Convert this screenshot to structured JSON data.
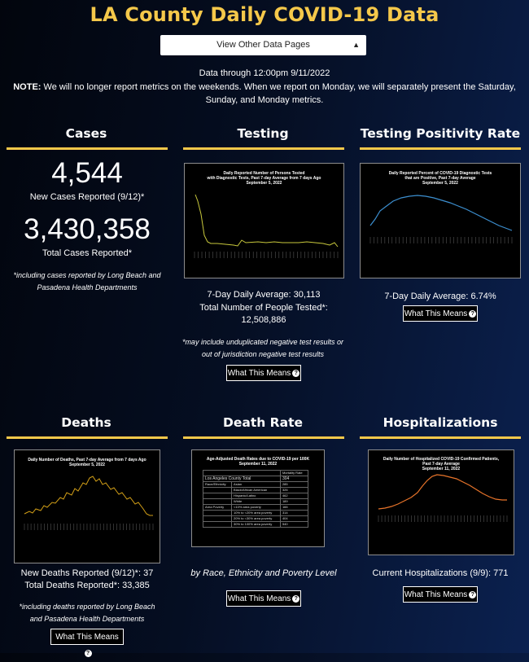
{
  "header": {
    "title": "LA County Daily COVID-19 Data",
    "select_label": "View Other Data Pages",
    "data_through": "Data through 12:00pm 9/11/2022",
    "note_label": "NOTE:",
    "note_text": " We will no longer report metrics on the weekends. When we report on Monday, we will separately present the Saturday, Sunday, and Monday metrics."
  },
  "cases": {
    "heading": "Cases",
    "new_value": "4,544",
    "new_label": "New Cases Reported (9/12)*",
    "total_value": "3,430,358",
    "total_label": "Total Cases Reported*",
    "footnote": "*including cases reported by Long Beach and Pasadena Health Departments"
  },
  "testing": {
    "heading": "Testing",
    "chart_title": "Daily Reported Number of Persons Tested\nwith Diagnostic Tests, Past 7-day Average from 7 days Ago\nSeptember 5, 2022",
    "avg": "7-Day Daily Average: 30,113",
    "total": "Total Number of People Tested*: 12,508,886",
    "footnote": "*may include unduplicated negative test results or out of jurisdiction negative test results",
    "button": "What This Means"
  },
  "positivity": {
    "heading": "Testing Positivity Rate",
    "chart_title": "Daily Reported Percent of COVID-19 Diagnostic Tests\nthat are Positive, Past 7-day Average\nSeptember 5, 2022",
    "avg": "7-Day Daily Average: 6.74%",
    "button": "What This Means"
  },
  "deaths": {
    "heading": "Deaths",
    "chart_title": "Daily Number of Deaths, Past 7-day Average from 7 days Ago\nSeptember 5, 2022",
    "new": "New Deaths Reported (9/12)*: 37",
    "total": "Total Deaths Reported*: 33,385",
    "footnote": "*including deaths reported by Long Beach and Pasadena Health Departments",
    "button": "What This Means"
  },
  "deathrate": {
    "heading": "Death Rate",
    "chart_title": "Age-Adjusted Death Rates due to COVID-19 per 100K\nSeptember 11, 2022",
    "col_header": "Mortality Rate",
    "county_label": "Los Angeles County Total",
    "county_value": "304",
    "rows": [
      {
        "group": "Race/Ethnicity",
        "label": "Asian",
        "value": "285"
      },
      {
        "group": "",
        "label": "Black/African American",
        "value": "326"
      },
      {
        "group": "",
        "label": "Hispanic/Latino",
        "value": "462"
      },
      {
        "group": "",
        "label": "White",
        "value": "189"
      },
      {
        "group": "Area Poverty",
        "label": "<10% area poverty",
        "value": "166"
      },
      {
        "group": "",
        "label": "10% to <20% area poverty",
        "value": "314"
      },
      {
        "group": "",
        "label": "20% to <30% area poverty",
        "value": "404"
      },
      {
        "group": "",
        "label": "30% to 100% area poverty",
        "value": "540"
      }
    ],
    "caption": "by Race, Ethnicity and Poverty Level",
    "button": "What This Means"
  },
  "hosp": {
    "heading": "Hospitalizations",
    "chart_title": "Daily Number of Hospitalized COVID-19 Confirmed Patients,\nPast 7-day Average\nSeptember 11, 2022",
    "current": "Current Hospitalizations (9/9): 771",
    "button": "What This Means"
  },
  "colors": {
    "accent": "#f5c84a",
    "testing_line": "#c8c83c",
    "positivity_line": "#3c8fd0",
    "deaths_line": "#d4a017",
    "hosp_line": "#e8742a"
  }
}
